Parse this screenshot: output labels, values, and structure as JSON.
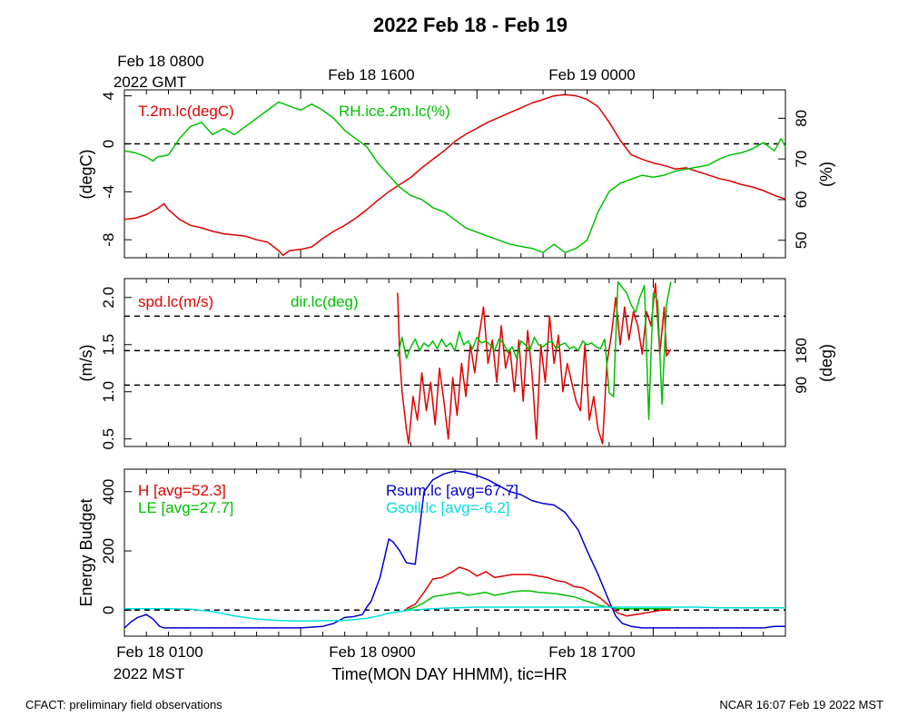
{
  "figure": {
    "title": "2022 Feb 18 - Feb 19",
    "footer_left": "CFACT: preliminary field observations",
    "footer_right": "NCAR 16:07 Feb 19 2022 MST",
    "top_axis": {
      "first_label_line1": "Feb 18 0800",
      "first_label_line2": "2022 GMT",
      "labels": [
        "Feb 18 1600",
        "Feb 19 0000"
      ]
    },
    "bottom_axis": {
      "first_label_line1": "Feb 18 0100",
      "first_label_line2": "2022 MST",
      "labels": [
        "Feb 18 0900",
        "Feb 18 1700"
      ],
      "xlabel": "Time(MON DAY HHMM), tic=HR"
    }
  },
  "colors": {
    "red": "#e00000",
    "green": "#00c000",
    "blue": "#0000d0",
    "cyan": "#00e0e0",
    "black": "#000000"
  },
  "chart_data": [
    {
      "type": "line",
      "panel": "temperature-humidity",
      "x_unit": "hours since Feb 18 0100 MST",
      "xlim": [
        0,
        30
      ],
      "y_left": {
        "label": "(degC)",
        "lim": [
          -9.5,
          4.5
        ],
        "ticks": [
          4,
          0,
          -4,
          -8
        ]
      },
      "y_right": {
        "label": "(%)",
        "lim": [
          45.7,
          87
        ],
        "ticks": [
          80,
          70,
          60,
          50
        ]
      },
      "reference_lines_left": [
        0
      ],
      "grid": false,
      "series": [
        {
          "name": "T.2m.lc(degC)",
          "axis": "left",
          "color": "red",
          "x": [
            0,
            0.5,
            1,
            1.5,
            1.8,
            2,
            2.5,
            3,
            3.5,
            4,
            4.5,
            5,
            5.5,
            6,
            6.5,
            7,
            7.2,
            7.5,
            8,
            8.5,
            9,
            9.5,
            10,
            10.5,
            11,
            11.5,
            12,
            12.5,
            13,
            13.5,
            14,
            14.5,
            15,
            15.5,
            16,
            16.5,
            17,
            17.5,
            18,
            18.5,
            19,
            19.5,
            20,
            20.5,
            21,
            21.5,
            22,
            22.5,
            23,
            23.5,
            24,
            24.5,
            25,
            25.5,
            26,
            26.5,
            27,
            27.5,
            28,
            28.5,
            29,
            29.5,
            30
          ],
          "y": [
            -6.3,
            -6.2,
            -5.9,
            -5.4,
            -5.0,
            -5.5,
            -6.3,
            -6.8,
            -7.0,
            -7.3,
            -7.5,
            -7.6,
            -7.7,
            -8.0,
            -8.2,
            -8.9,
            -9.3,
            -8.9,
            -8.8,
            -8.6,
            -7.9,
            -7.3,
            -6.8,
            -6.2,
            -5.5,
            -4.7,
            -4.0,
            -3.4,
            -2.8,
            -2.0,
            -1.3,
            -0.6,
            0.2,
            0.8,
            1.3,
            1.8,
            2.2,
            2.6,
            3.0,
            3.4,
            3.7,
            4.0,
            4.1,
            4.0,
            3.7,
            3.1,
            1.8,
            0.3,
            -0.9,
            -1.3,
            -1.6,
            -1.8,
            -2.1,
            -2.0,
            -2.3,
            -2.6,
            -2.9,
            -3.1,
            -3.4,
            -3.6,
            -3.9,
            -4.3,
            -4.6
          ]
        },
        {
          "name": "RH.ice.2m.lc(%)",
          "axis": "right",
          "color": "green",
          "x": [
            0,
            0.5,
            1,
            1.3,
            1.5,
            2,
            2.5,
            3,
            3.5,
            4,
            4.5,
            5,
            5.5,
            6,
            6.5,
            7,
            7.5,
            8,
            8.5,
            9,
            9.5,
            10,
            10.5,
            11,
            11.5,
            12,
            12.5,
            13,
            13.5,
            14,
            14.5,
            15,
            15.5,
            16,
            16.5,
            17,
            17.5,
            18,
            18.5,
            19,
            19.5,
            20,
            20.5,
            21,
            21.5,
            22,
            22.5,
            23,
            23.5,
            24,
            24.5,
            25,
            25.5,
            26,
            26.5,
            27,
            27.5,
            28,
            28.5,
            29,
            29.5,
            29.8,
            30
          ],
          "y": [
            72,
            71.5,
            70.5,
            69.5,
            70.5,
            71,
            75,
            78,
            79,
            76,
            77.5,
            76,
            78,
            80,
            82,
            84,
            83,
            82,
            83.5,
            82,
            80,
            77,
            75,
            73,
            69,
            66,
            63,
            61,
            60,
            58,
            57,
            55,
            53,
            52,
            51,
            50,
            49,
            48.5,
            48,
            47,
            49,
            47,
            48,
            50,
            57,
            62,
            64,
            65,
            66,
            65.5,
            66,
            67,
            67.5,
            68,
            68.5,
            70,
            71,
            71.5,
            72.5,
            74,
            72,
            75,
            73
          ]
        }
      ]
    },
    {
      "type": "line",
      "panel": "wind",
      "x_unit": "hours since Feb 18 0100 MST",
      "xlim": [
        0,
        30
      ],
      "y_left": {
        "label": "(m/s)",
        "lim": [
          0.42,
          2.2
        ],
        "ticks": [
          2.0,
          1.5,
          1.0,
          0.5
        ]
      },
      "y_right": {
        "label": "(deg)",
        "lim": [
          -70.5,
          368.2
        ],
        "ticks": [
          180,
          90
        ]
      },
      "reference_lines_right": [
        90,
        180,
        270
      ],
      "grid": false,
      "series": [
        {
          "name": "spd.lc(m/s)",
          "axis": "left",
          "color": "red",
          "x": [
            12.4,
            12.5,
            12.6,
            12.8,
            12.9,
            13.1,
            13.3,
            13.5,
            13.7,
            13.9,
            14.1,
            14.3,
            14.5,
            14.7,
            14.9,
            15.1,
            15.3,
            15.5,
            15.7,
            15.9,
            16.1,
            16.3,
            16.5,
            16.7,
            16.9,
            17.1,
            17.3,
            17.5,
            17.7,
            17.9,
            18.1,
            18.3,
            18.5,
            18.7,
            18.9,
            19.1,
            19.3,
            19.5,
            19.7,
            19.9,
            20.1,
            20.3,
            20.5,
            20.7,
            20.9,
            21.1,
            21.3,
            21.5,
            21.7,
            21.9,
            22.1,
            22.3,
            22.5,
            22.7,
            22.9,
            23.1,
            23.3,
            23.5,
            23.7,
            23.9,
            24.1,
            24.3,
            24.5,
            24.6,
            24.8
          ],
          "y": [
            2.05,
            1.35,
            1.0,
            0.6,
            0.45,
            0.95,
            0.7,
            1.2,
            0.8,
            1.1,
            0.65,
            1.25,
            0.9,
            0.5,
            1.15,
            0.75,
            1.3,
            0.95,
            1.5,
            1.2,
            1.6,
            1.9,
            1.3,
            1.55,
            1.1,
            1.7,
            1.25,
            1.45,
            1.0,
            1.55,
            0.9,
            1.65,
            1.2,
            0.5,
            1.5,
            1.1,
            1.8,
            1.3,
            1.6,
            1.0,
            1.3,
            1.1,
            0.9,
            0.8,
            1.5,
            0.7,
            0.95,
            0.6,
            0.45,
            1.3,
            1.6,
            2.0,
            1.5,
            1.9,
            1.55,
            1.85,
            1.7,
            1.4,
            1.85,
            1.7,
            2.15,
            1.4,
            1.9,
            1.38,
            1.45
          ]
        },
        {
          "name": "dir.lc(deg)",
          "axis": "right",
          "color": "green",
          "x": [
            12.4,
            12.6,
            12.8,
            13.0,
            13.2,
            13.4,
            13.6,
            13.8,
            14.0,
            14.2,
            14.4,
            14.6,
            14.8,
            15.0,
            15.2,
            15.4,
            15.6,
            15.8,
            16.0,
            16.2,
            16.4,
            16.6,
            16.8,
            17.0,
            17.2,
            17.4,
            17.6,
            17.8,
            18.0,
            18.2,
            18.4,
            18.6,
            18.8,
            19.0,
            19.2,
            19.4,
            19.6,
            19.8,
            20.0,
            20.2,
            20.4,
            20.6,
            20.8,
            21.0,
            21.2,
            21.4,
            21.6,
            21.8,
            22.0,
            22.2,
            22.4,
            22.6,
            22.8,
            23.0,
            23.2,
            23.4,
            23.6,
            23.8,
            24.0,
            24.2,
            24.4,
            24.6,
            24.8
          ],
          "y": [
            165,
            215,
            160,
            190,
            210,
            180,
            200,
            190,
            205,
            185,
            210,
            190,
            200,
            180,
            230,
            195,
            205,
            185,
            215,
            200,
            205,
            195,
            180,
            210,
            200,
            175,
            190,
            160,
            205,
            195,
            180,
            215,
            195,
            190,
            200,
            205,
            185,
            195,
            200,
            185,
            190,
            180,
            205,
            195,
            200,
            190,
            185,
            210,
            70,
            60,
            360,
            345,
            330,
            300,
            280,
            320,
            350,
            0,
            330,
            310,
            40,
            300,
            360
          ]
        }
      ]
    },
    {
      "type": "line",
      "panel": "energy-budget",
      "x_unit": "hours since Feb 18 0100 MST",
      "xlim": [
        0,
        30
      ],
      "y_left": {
        "label": "Energy Budget",
        "lim": [
          -88,
          476
        ],
        "ticks": [
          400,
          200,
          0
        ]
      },
      "reference_lines_left": [
        0
      ],
      "grid": false,
      "series": [
        {
          "name": "H",
          "label": "H [avg=52.3]",
          "color": "red",
          "x": [
            12.8,
            13.2,
            13.6,
            14.0,
            14.4,
            14.8,
            15.2,
            15.6,
            16.0,
            16.4,
            16.8,
            17.2,
            17.6,
            18.0,
            18.4,
            18.8,
            19.2,
            19.6,
            20.0,
            20.4,
            20.8,
            21.2,
            21.6,
            22.0,
            22.4,
            22.8,
            23.2,
            23.6,
            24.0,
            24.4,
            24.8
          ],
          "y": [
            5,
            20,
            60,
            105,
            110,
            125,
            145,
            135,
            115,
            130,
            110,
            115,
            120,
            120,
            120,
            115,
            110,
            100,
            95,
            80,
            75,
            60,
            40,
            15,
            -10,
            -20,
            -15,
            -10,
            -5,
            0,
            0
          ]
        },
        {
          "name": "LE",
          "label": "LE [avg=27.7]",
          "color": "green",
          "x": [
            12.8,
            13.2,
            13.6,
            14.0,
            14.4,
            14.8,
            15.2,
            15.6,
            16.0,
            16.4,
            16.8,
            17.2,
            17.6,
            18.0,
            18.4,
            18.8,
            19.2,
            19.6,
            20.0,
            20.4,
            20.8,
            21.2,
            21.6,
            22.0,
            22.4,
            22.8,
            23.2,
            23.6,
            24.0,
            24.4,
            24.8
          ],
          "y": [
            0,
            10,
            25,
            45,
            50,
            55,
            60,
            50,
            55,
            60,
            50,
            55,
            62,
            65,
            65,
            60,
            58,
            55,
            50,
            45,
            35,
            25,
            15,
            10,
            5,
            5,
            5,
            5,
            5,
            5,
            5
          ]
        },
        {
          "name": "Rsum.lc",
          "label": "Rsum.lc [avg=67.7]",
          "color": "blue",
          "x": [
            0,
            0.3,
            0.6,
            1,
            1.3,
            1.6,
            1.8,
            2,
            3,
            4,
            5,
            6,
            7,
            8,
            9,
            9.5,
            10,
            10.4,
            10.8,
            11,
            11.2,
            11.6,
            12,
            12.2,
            12.5,
            12.8,
            13.2,
            13.6,
            14,
            14.5,
            15,
            15.5,
            16,
            16.5,
            17,
            17.5,
            18,
            18.5,
            19,
            19.5,
            20,
            20.3,
            20.6,
            21,
            21.5,
            22,
            22.3,
            22.6,
            23,
            23.5,
            24,
            25,
            26,
            27,
            28,
            29,
            29.5,
            30
          ],
          "y": [
            -60,
            -40,
            -25,
            -15,
            -30,
            -55,
            -60,
            -60,
            -60,
            -60,
            -60,
            -60,
            -60,
            -60,
            -55,
            -45,
            -25,
            -22,
            -15,
            10,
            30,
            110,
            240,
            230,
            200,
            160,
            155,
            400,
            440,
            460,
            470,
            465,
            455,
            440,
            420,
            400,
            390,
            370,
            360,
            355,
            330,
            300,
            270,
            200,
            120,
            30,
            -20,
            -45,
            -55,
            -60,
            -60,
            -60,
            -60,
            -60,
            -60,
            -60,
            -55,
            -55
          ]
        },
        {
          "name": "Gsoil.lc",
          "label": "Gsoil.lc [avg=-6.2]",
          "color": "cyan",
          "x": [
            0,
            1,
            2,
            3,
            4,
            5,
            6,
            7,
            8,
            9,
            10,
            11,
            11.5,
            12,
            12.5,
            13,
            14,
            15,
            16,
            17,
            18,
            19,
            20,
            21,
            22,
            23,
            24,
            25,
            26,
            27,
            28,
            29,
            30
          ],
          "y": [
            5,
            5,
            5,
            3,
            -5,
            -20,
            -30,
            -35,
            -37,
            -36,
            -35,
            -28,
            -20,
            -10,
            -5,
            0,
            5,
            8,
            10,
            10,
            10,
            10,
            10,
            10,
            10,
            10,
            10,
            10,
            10,
            8,
            8,
            8,
            8
          ]
        }
      ]
    }
  ]
}
